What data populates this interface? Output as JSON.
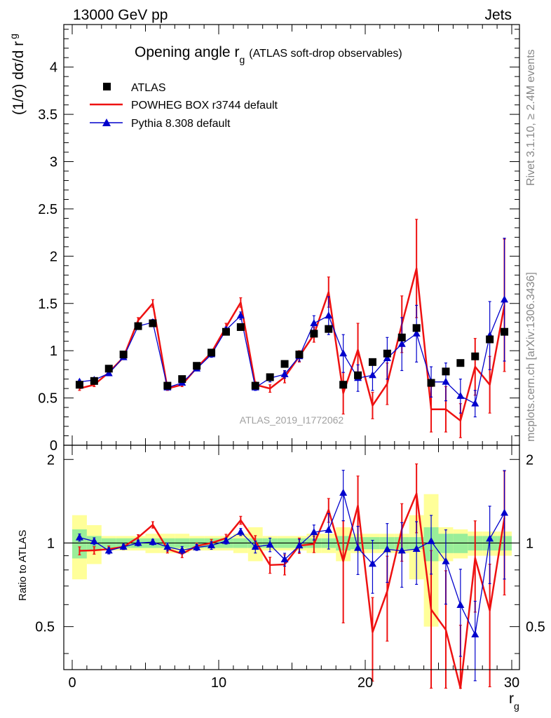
{
  "header": {
    "left": "13000 GeV pp",
    "right": "Jets"
  },
  "side_text": {
    "top": "Rivet 3.1.10, ≥ 2.4M events",
    "bottom": "mcplots.cern.ch [arXiv:1306.3436]"
  },
  "main_title": {
    "main": "Opening angle r",
    "sub": "g",
    "suffix": "(ATLAS soft-drop observables)"
  },
  "ylabel": {
    "main": "(1/σ) dσ/d r",
    "sub": "g"
  },
  "ratio_ylabel": "Ratio to ATLAS",
  "xlabel": {
    "main": "r",
    "sub": "g"
  },
  "watermark": "ATLAS_2019_I1772062",
  "legend": [
    {
      "label": "ATLAS",
      "marker": "square",
      "color": "#000000"
    },
    {
      "label": "POWHEG BOX r3744 default",
      "marker": "line",
      "color": "#ee1111"
    },
    {
      "label": "Pythia 8.308 default",
      "marker": "triangle",
      "color": "#0000cc"
    }
  ],
  "colors": {
    "data": "#000000",
    "powheg": "#ee1111",
    "pythia": "#0000cc",
    "band_inner": "#99ee99",
    "band_outer": "#ffff99"
  },
  "chart_data": {
    "type": "line",
    "xlim": [
      0,
      30
    ],
    "main_ylim": [
      0,
      4.45
    ],
    "ratio_ylim": [
      0.35,
      2.25
    ],
    "main_yticks": [
      "0",
      "0.5",
      "1",
      "1.5",
      "2",
      "2.5",
      "3",
      "3.5",
      "4"
    ],
    "main_ytick_values": [
      0,
      0.5,
      1,
      1.5,
      2,
      2.5,
      3,
      3.5,
      4
    ],
    "ratio_yticks": [
      "0.5",
      "1",
      "2"
    ],
    "ratio_ytick_values": [
      0.5,
      1,
      2
    ],
    "xticks": [
      "0",
      "10",
      "20",
      "30"
    ],
    "xtick_values": [
      0,
      10,
      20,
      30
    ],
    "x": [
      0.5,
      1.5,
      2.5,
      3.5,
      4.5,
      5.5,
      6.5,
      7.5,
      8.5,
      9.5,
      10.5,
      11.5,
      12.5,
      13.5,
      14.5,
      15.5,
      16.5,
      17.5,
      18.5,
      19.5,
      20.5,
      21.5,
      22.5,
      23.5,
      24.5,
      25.5,
      26.5,
      27.5,
      28.5,
      29.5
    ],
    "series": [
      {
        "name": "ATLAS",
        "values": [
          0.64,
          0.68,
          0.81,
          0.96,
          1.26,
          1.29,
          0.63,
          0.7,
          0.84,
          0.98,
          1.2,
          1.25,
          0.63,
          0.72,
          0.86,
          0.96,
          1.18,
          1.23,
          0.64,
          0.74,
          0.88,
          0.97,
          1.14,
          1.24,
          0.66,
          0.78,
          0.87,
          0.94,
          1.12,
          1.2
        ],
        "band_inner": [
          0.12,
          0.06,
          0.04,
          0.04,
          0.04,
          0.04,
          0.04,
          0.04,
          0.04,
          0.04,
          0.04,
          0.04,
          0.04,
          0.04,
          0.04,
          0.04,
          0.04,
          0.04,
          0.06,
          0.05,
          0.05,
          0.05,
          0.05,
          0.05,
          0.14,
          0.08,
          0.08,
          0.06,
          0.06,
          0.06
        ],
        "band_outer": [
          0.26,
          0.16,
          0.06,
          0.06,
          0.06,
          0.08,
          0.08,
          0.08,
          0.06,
          0.06,
          0.06,
          0.08,
          0.14,
          0.06,
          0.06,
          0.06,
          0.08,
          0.08,
          0.14,
          0.08,
          0.08,
          0.08,
          0.08,
          0.26,
          0.5,
          0.14,
          0.12,
          0.1,
          0.1,
          0.1
        ]
      },
      {
        "name": "POWHEG BOX r3744 default",
        "values": [
          0.6,
          0.64,
          0.77,
          0.93,
          1.32,
          1.5,
          0.6,
          0.64,
          0.82,
          0.98,
          1.25,
          1.51,
          0.64,
          0.6,
          0.72,
          0.94,
          1.17,
          1.62,
          0.55,
          1.01,
          0.42,
          0.65,
          1.28,
          1.87,
          0.38,
          0.38,
          0.26,
          0.83,
          0.64,
          1.48
        ],
        "err": [
          0.02,
          0.02,
          0.02,
          0.02,
          0.03,
          0.04,
          0.02,
          0.02,
          0.02,
          0.03,
          0.04,
          0.05,
          0.03,
          0.04,
          0.06,
          0.06,
          0.08,
          0.16,
          0.22,
          0.28,
          0.14,
          0.22,
          0.3,
          0.52,
          0.24,
          0.24,
          0.18,
          0.3,
          0.3,
          0.7
        ]
      },
      {
        "name": "Pythia 8.308 default",
        "values": [
          0.67,
          0.69,
          0.76,
          0.93,
          1.26,
          1.3,
          0.61,
          0.66,
          0.81,
          0.96,
          1.22,
          1.37,
          0.61,
          0.71,
          0.75,
          0.94,
          1.29,
          1.37,
          0.97,
          0.71,
          0.74,
          0.92,
          1.07,
          1.18,
          0.67,
          0.67,
          0.52,
          0.44,
          1.16,
          1.54
        ],
        "err": [
          0.02,
          0.02,
          0.02,
          0.02,
          0.03,
          0.03,
          0.02,
          0.02,
          0.02,
          0.03,
          0.03,
          0.04,
          0.03,
          0.04,
          0.04,
          0.05,
          0.08,
          0.2,
          0.2,
          0.14,
          0.16,
          0.22,
          0.28,
          0.3,
          0.16,
          0.2,
          0.18,
          0.14,
          0.36,
          0.65
        ]
      }
    ]
  }
}
